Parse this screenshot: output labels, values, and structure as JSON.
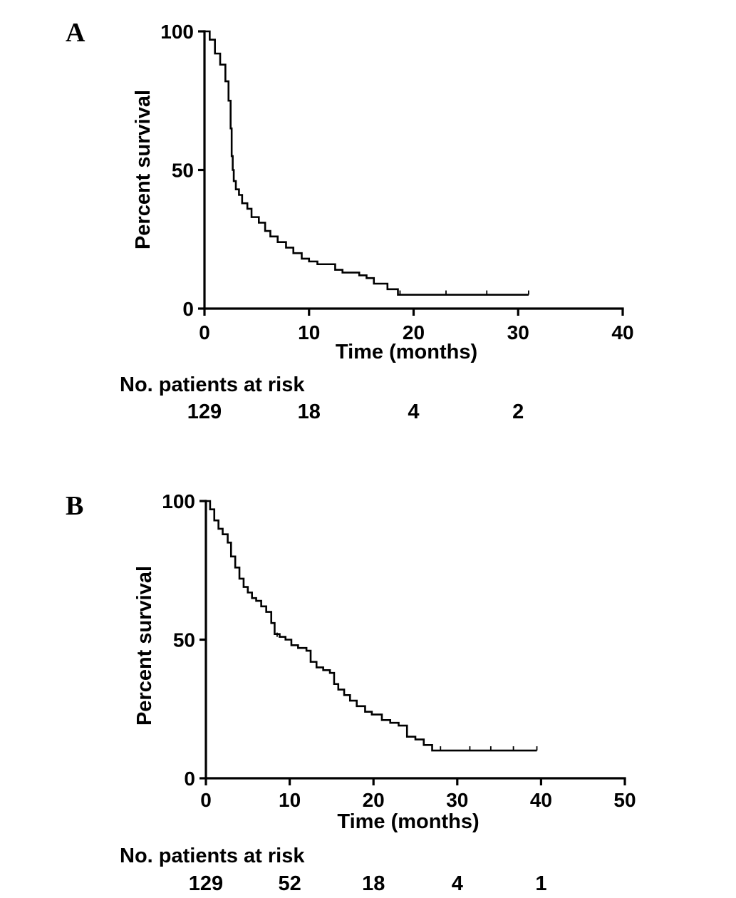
{
  "chart_data": [
    {
      "type": "line",
      "panel_label": "A",
      "xlabel": "Time (months)",
      "ylabel": "Percent survival",
      "xlim": [
        0,
        40
      ],
      "ylim": [
        0,
        100
      ],
      "x_ticks": [
        0,
        10,
        20,
        30,
        40
      ],
      "y_ticks": [
        0,
        50,
        100
      ],
      "series": [
        {
          "x": [
            0,
            0.5,
            1.0,
            1.5,
            2.0,
            2.3,
            2.5,
            2.6,
            2.7,
            2.8,
            3.0,
            3.3,
            3.6,
            4.1,
            4.5,
            5.2,
            5.8,
            6.3,
            7.0,
            7.8,
            8.5,
            9.3,
            10.0,
            10.8,
            12.5,
            13.2,
            14.8,
            15.5,
            16.2,
            17.5,
            18.5,
            31.0
          ],
          "y": [
            100,
            97,
            92,
            88,
            82,
            75,
            65,
            55,
            50,
            46,
            43,
            41,
            38,
            36,
            33,
            31,
            28,
            26,
            24,
            22,
            20,
            18,
            17,
            16,
            14,
            13,
            12,
            11,
            9,
            7,
            5,
            5
          ]
        }
      ],
      "censor_marks": {
        "x": [
          18.7,
          23.1,
          27.0,
          31.0
        ],
        "y": [
          5,
          5,
          5,
          5
        ]
      },
      "risk_table": {
        "title": "No. patients at risk",
        "x": [
          0,
          10,
          20,
          30
        ],
        "values": [
          "129",
          "18",
          "4",
          "2"
        ]
      }
    },
    {
      "type": "line",
      "panel_label": "B",
      "xlabel": "Time (months)",
      "ylabel": "Percent survival",
      "xlim": [
        0,
        50
      ],
      "ylim": [
        0,
        100
      ],
      "x_ticks": [
        0,
        10,
        20,
        30,
        40,
        50
      ],
      "y_ticks": [
        0,
        50,
        100
      ],
      "series": [
        {
          "x": [
            0,
            0.5,
            1.0,
            1.5,
            2.0,
            2.6,
            3.0,
            3.5,
            4.0,
            4.5,
            5.0,
            5.5,
            6.0,
            6.6,
            7.2,
            7.8,
            8.2,
            8.8,
            9.5,
            10.2,
            11.0,
            12.0,
            12.5,
            13.2,
            14.0,
            14.8,
            15.3,
            15.8,
            16.5,
            17.2,
            18.0,
            19.0,
            19.8,
            21.0,
            22.0,
            23.0,
            24.0,
            25.0,
            26.0,
            27.0,
            39.5
          ],
          "y": [
            100,
            97,
            93,
            90,
            88,
            85,
            80,
            76,
            72,
            69,
            67,
            65,
            64,
            62,
            60,
            56,
            52,
            51,
            50,
            48,
            47,
            46,
            42,
            40,
            39,
            38,
            34,
            32,
            30,
            28,
            26,
            24,
            23,
            21,
            20,
            19,
            15,
            14,
            12,
            10,
            10
          ]
        }
      ],
      "censor_marks": {
        "x": [
          8.5,
          28.0,
          31.5,
          34.0,
          36.7,
          39.5
        ],
        "y": [
          51,
          10,
          10,
          10,
          10,
          10
        ]
      },
      "risk_table": {
        "title": "No. patients at risk",
        "x": [
          0,
          10,
          20,
          30,
          40
        ],
        "values": [
          "129",
          "52",
          "18",
          "4",
          "1"
        ]
      }
    }
  ]
}
